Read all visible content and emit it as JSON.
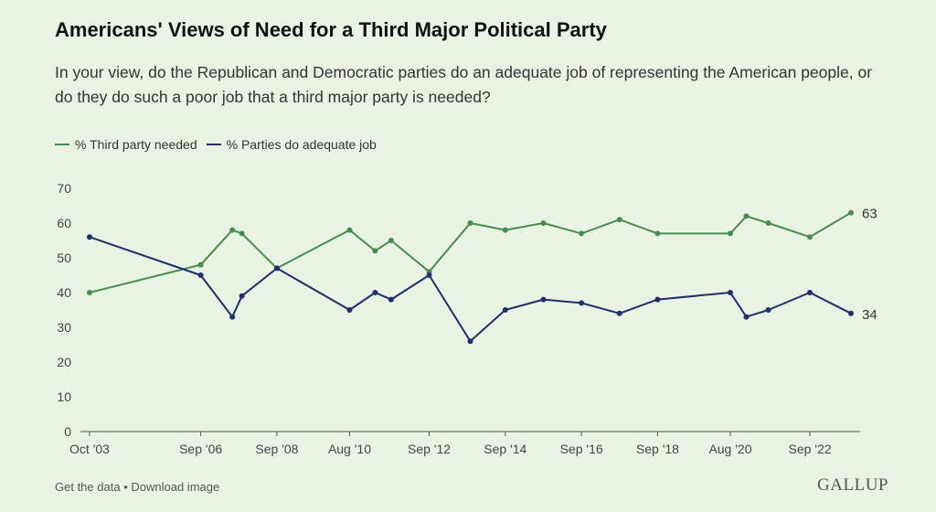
{
  "header": {
    "title": "Americans' Views of Need for a Third Major Political Party",
    "subtitle": "In your view, do the Republican and Democratic parties do an adequate job of representing the American people, or do they do such a poor job that a third major party is needed?"
  },
  "colors": {
    "third_party": "#4a8c4f",
    "adequate": "#1f2f6b",
    "axis_text": "#444",
    "grid": "#c7d3c0"
  },
  "chart_data": {
    "type": "line",
    "title": "Americans' Views of Need for a Third Major Political Party",
    "xlabel": "",
    "ylabel": "",
    "ylim": [
      0,
      70
    ],
    "yticks": [
      0,
      10,
      20,
      30,
      40,
      50,
      60,
      70
    ],
    "xlim": [
      2003.75,
      2023.75
    ],
    "xticks": [
      {
        "x": 2003.75,
        "label": "Oct '03"
      },
      {
        "x": 2006.67,
        "label": "Sep '06"
      },
      {
        "x": 2008.67,
        "label": "Sep '08"
      },
      {
        "x": 2010.58,
        "label": "Aug '10"
      },
      {
        "x": 2012.67,
        "label": "Sep '12"
      },
      {
        "x": 2014.67,
        "label": "Sep '14"
      },
      {
        "x": 2016.67,
        "label": "Sep '16"
      },
      {
        "x": 2018.67,
        "label": "Sep '18"
      },
      {
        "x": 2020.58,
        "label": "Aug '20"
      },
      {
        "x": 2022.67,
        "label": "Sep '22"
      }
    ],
    "legend_position": "top-left",
    "grid": false,
    "series": [
      {
        "name": "% Third party needed",
        "color_key": "third_party",
        "points": [
          [
            2003.75,
            40
          ],
          [
            2006.67,
            48
          ],
          [
            2007.5,
            58
          ],
          [
            2007.75,
            57
          ],
          [
            2008.67,
            47
          ],
          [
            2010.58,
            58
          ],
          [
            2011.25,
            52
          ],
          [
            2011.67,
            55
          ],
          [
            2012.67,
            46
          ],
          [
            2013.75,
            60
          ],
          [
            2014.67,
            58
          ],
          [
            2015.67,
            60
          ],
          [
            2016.67,
            57
          ],
          [
            2017.67,
            61
          ],
          [
            2018.67,
            57
          ],
          [
            2020.58,
            57
          ],
          [
            2021.0,
            62
          ],
          [
            2021.58,
            60
          ],
          [
            2022.67,
            56
          ],
          [
            2023.75,
            63
          ]
        ],
        "end_label": "63"
      },
      {
        "name": "% Parties do adequate job",
        "color_key": "adequate",
        "points": [
          [
            2003.75,
            56
          ],
          [
            2006.67,
            45
          ],
          [
            2007.5,
            33
          ],
          [
            2007.75,
            39
          ],
          [
            2008.67,
            47
          ],
          [
            2010.58,
            35
          ],
          [
            2011.25,
            40
          ],
          [
            2011.67,
            38
          ],
          [
            2012.67,
            45
          ],
          [
            2013.75,
            26
          ],
          [
            2014.67,
            35
          ],
          [
            2015.67,
            38
          ],
          [
            2016.67,
            37
          ],
          [
            2017.67,
            34
          ],
          [
            2018.67,
            38
          ],
          [
            2020.58,
            40
          ],
          [
            2021.0,
            33
          ],
          [
            2021.58,
            35
          ],
          [
            2022.67,
            40
          ],
          [
            2023.75,
            34
          ]
        ],
        "end_label": "34"
      }
    ]
  },
  "footer": {
    "get_data": "Get the data",
    "separator": "•",
    "download": "Download image",
    "brand": "GALLUP"
  }
}
